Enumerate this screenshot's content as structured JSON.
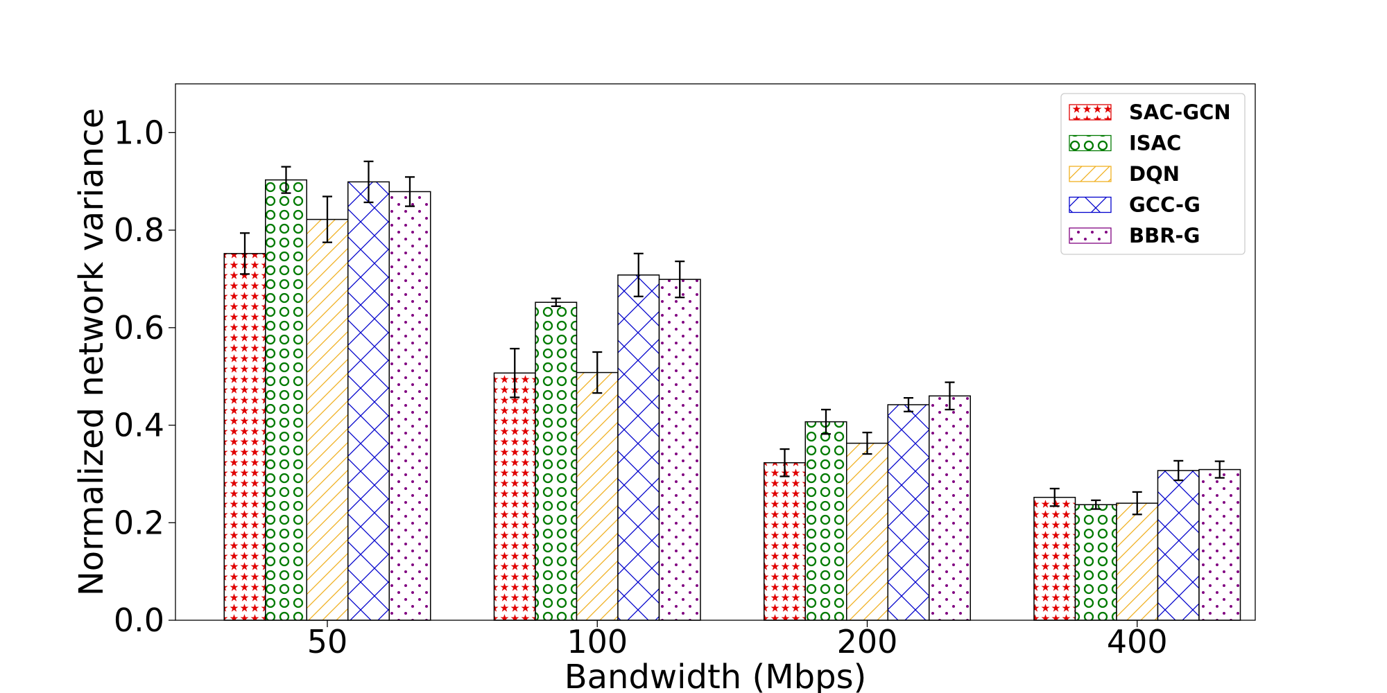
{
  "chart_data": {
    "type": "bar",
    "title": "",
    "xlabel": "Bandwidth (Mbps)",
    "ylabel": "Normalized network variance",
    "categories": [
      "50",
      "100",
      "200",
      "400"
    ],
    "ylim": [
      0,
      1.1
    ],
    "yticks": [
      "0.0",
      "0.2",
      "0.4",
      "0.6",
      "0.8",
      "1.0"
    ],
    "grid": false,
    "legend_position": "top-right",
    "series": [
      {
        "name": "SAC-GCN",
        "color": "#e00000",
        "pattern": "stars",
        "values": [
          0.752,
          0.507,
          0.323,
          0.252
        ],
        "errors": [
          0.042,
          0.05,
          0.028,
          0.018
        ]
      },
      {
        "name": "ISAC",
        "color": "#007a00",
        "pattern": "circles",
        "values": [
          0.903,
          0.652,
          0.407,
          0.237
        ],
        "errors": [
          0.027,
          0.008,
          0.025,
          0.009
        ]
      },
      {
        "name": "DQN",
        "color": "#f0b020",
        "pattern": "diagonal",
        "values": [
          0.822,
          0.508,
          0.363,
          0.24
        ],
        "errors": [
          0.047,
          0.042,
          0.022,
          0.023
        ]
      },
      {
        "name": "GCC-G",
        "color": "#0000cc",
        "pattern": "crosshatch",
        "values": [
          0.899,
          0.708,
          0.442,
          0.307
        ],
        "errors": [
          0.042,
          0.044,
          0.014,
          0.02
        ]
      },
      {
        "name": "BBR-G",
        "color": "#800080",
        "pattern": "dots",
        "values": [
          0.879,
          0.699,
          0.46,
          0.309
        ],
        "errors": [
          0.03,
          0.037,
          0.028,
          0.017
        ]
      }
    ]
  }
}
